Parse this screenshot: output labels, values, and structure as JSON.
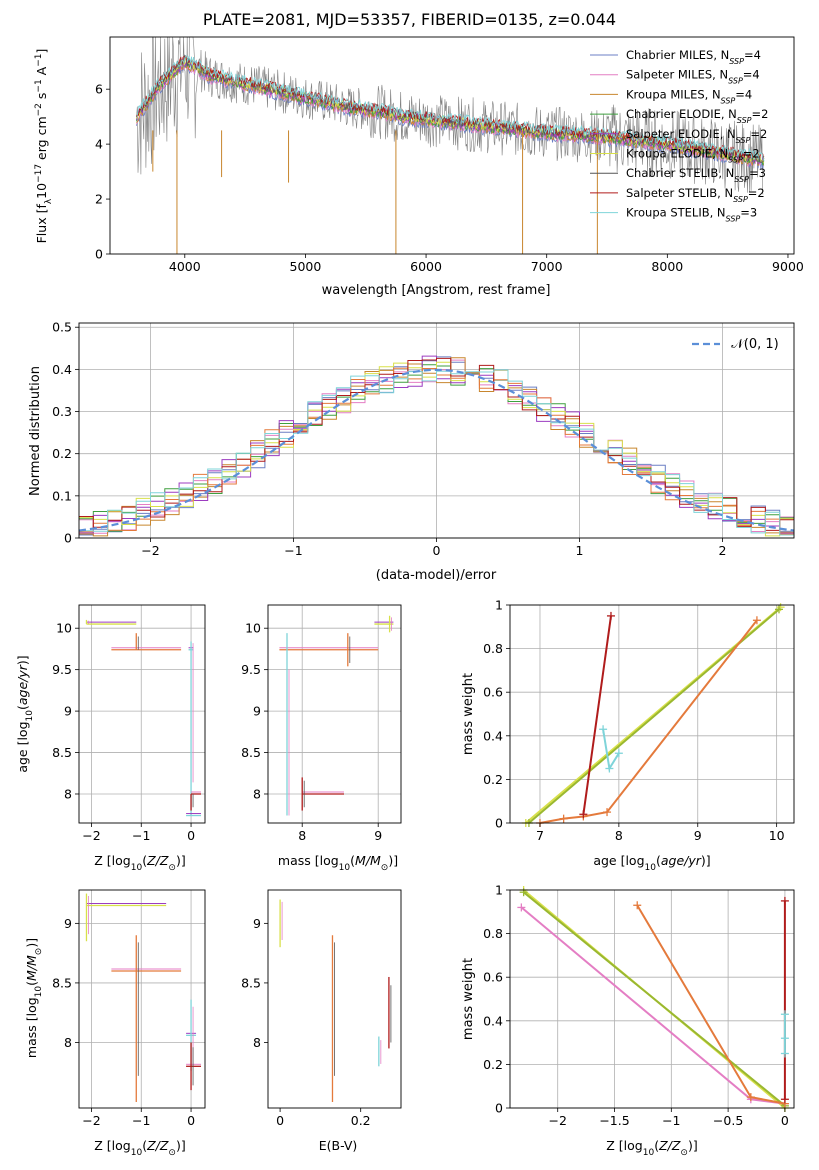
{
  "title": "PLATE=2081, MJD=53357, FIBERID=0135, z=0.044",
  "series_names": [
    "Chabrier MILES, N$_{SSP}$=4",
    "Salpeter MILES, N$_{SSP}$=4",
    "Kroupa MILES, N$_{SSP}$=4",
    "Chabrier ELODIE, N$_{SSP}$=2",
    "Salpeter ELODIE, N$_{SSP}$=2",
    "Kroupa ELODIE, N$_{SSP}$=2",
    "Chabrier STELIB, N$_{SSP}$=3",
    "Salpeter STELIB, N$_{SSP}$=2",
    "Kroupa STELIB, N$_{SSP}$=3"
  ],
  "legend_labels": [
    {
      "pre": "Chabrier MILES, N",
      "sub": "SSP",
      "post": "=4"
    },
    {
      "pre": "Salpeter MILES, N",
      "sub": "SSP",
      "post": "=4"
    },
    {
      "pre": "Kroupa MILES, N",
      "sub": "SSP",
      "post": "=4"
    },
    {
      "pre": "Chabrier ELODIE, N",
      "sub": "SSP",
      "post": "=2"
    },
    {
      "pre": "Salpeter ELODIE, N",
      "sub": "SSP",
      "post": "=2"
    },
    {
      "pre": "Kroupa ELODIE, N",
      "sub": "SSP",
      "post": "=2"
    },
    {
      "pre": "Chabrier STELIB, N",
      "sub": "SSP",
      "post": "=3"
    },
    {
      "pre": "Salpeter STELIB, N",
      "sub": "SSP",
      "post": "=2"
    },
    {
      "pre": "Kroupa STELIB, N",
      "sub": "SSP",
      "post": "=3"
    }
  ],
  "colors": [
    "#6b7fc4",
    "#e47ec4",
    "#c8862e",
    "#3f9f3f",
    "#9c3cc0",
    "#d8e04a",
    "#555555",
    "#b01c1c",
    "#7fd4d9"
  ],
  "extra_colors": {
    "data": "#808080",
    "orange": "#e47a3c",
    "dashed": "#5b8fd8",
    "grid": "#b0b0b0"
  },
  "chart_data": [
    {
      "type": "line",
      "title": "PLATE=2081, MJD=53357, FIBERID=0135, z=0.044",
      "xlabel": "wavelength [Angstrom, rest frame]",
      "ylabel": "Flux [f$_\\lambda$ 10$^{-17}$ erg cm$^{-2}$ s$^{-1}$ A$^{-1}$]",
      "xlim": [
        3380,
        9050
      ],
      "ylim": [
        0,
        7.9
      ],
      "xticks": [
        4000,
        5000,
        6000,
        7000,
        8000,
        9000
      ],
      "yticks": [
        0,
        2,
        4,
        6
      ],
      "grid": false,
      "legend": "upper-right",
      "x": [
        3600,
        3700,
        3800,
        3900,
        4000,
        4100,
        4200,
        4300,
        4400,
        4500,
        4600,
        4800,
        5000,
        5200,
        5400,
        5600,
        5800,
        6000,
        6200,
        6400,
        6600,
        6800,
        7000,
        7200,
        7400,
        7600,
        7800,
        8000,
        8200,
        8400,
        8600,
        8800
      ],
      "model_flux": [
        5.0,
        5.6,
        6.2,
        6.6,
        7.0,
        6.8,
        6.5,
        6.4,
        6.3,
        6.2,
        6.1,
        5.9,
        5.7,
        5.5,
        5.3,
        5.2,
        5.0,
        4.9,
        4.8,
        4.7,
        4.6,
        4.5,
        4.4,
        4.35,
        4.3,
        4.2,
        4.1,
        4.0,
        3.85,
        3.7,
        3.55,
        3.4
      ]
    },
    {
      "type": "line",
      "xlabel": "(data-model)/error",
      "ylabel": "Normed distribution",
      "xlim": [
        -2.5,
        2.5
      ],
      "ylim": [
        0,
        0.51
      ],
      "xticks": [
        -2,
        -1,
        0,
        1,
        2
      ],
      "yticks": [
        0.0,
        0.1,
        0.2,
        0.3,
        0.4,
        0.5
      ],
      "grid": true,
      "legend": "upper-right",
      "legend_label": "$\\mathcal{N}(0,1)$",
      "bin_width": 0.1
    },
    {
      "type": "scatter",
      "xlabel": "Z [log$_{10}$($Z/Z_\\odot$)]",
      "ylabel": "age  [log$_{10}$($age/yr$)]",
      "xlim": [
        -2.25,
        0.28
      ],
      "ylim": [
        7.65,
        10.28
      ],
      "xticks": [
        -2,
        -1,
        0
      ],
      "yticks": [
        8.0,
        8.5,
        9.0,
        9.5,
        10.0
      ],
      "grid": true,
      "points": [
        {
          "x": -2.1,
          "y": 10.05,
          "xerr": [
            0.0,
            1.0
          ],
          "yerr": [
            0.0,
            0.05
          ]
        },
        {
          "x": -1.1,
          "y": 9.74,
          "xerr": [
            0.5,
            0.9
          ],
          "yerr": [
            0.0,
            0.2
          ]
        },
        {
          "x": 0.0,
          "y": 9.74,
          "xerr": [
            0.05,
            0.05
          ],
          "yerr": [
            2.0,
            0.1
          ]
        },
        {
          "x": 0.0,
          "y": 8.0,
          "xerr": [
            0.0,
            0.2
          ],
          "yerr": [
            0.2,
            0.0
          ]
        },
        {
          "x": 0.0,
          "y": 7.74,
          "xerr": [
            0.1,
            0.2
          ],
          "yerr": [
            0.0,
            0.0
          ]
        }
      ]
    },
    {
      "type": "scatter",
      "xlabel": "mass [log$_{10}$($M/M_\\odot$)]",
      "ylabel": "",
      "xlim": [
        7.55,
        9.3
      ],
      "ylim": [
        7.65,
        10.28
      ],
      "xticks": [
        8,
        9
      ],
      "yticks": [
        8.0,
        8.5,
        9.0,
        9.5,
        10.0
      ],
      "grid": true,
      "points": [
        {
          "x": 9.15,
          "y": 10.05,
          "xerr": [
            0.2,
            0.05
          ],
          "yerr": [
            0.1,
            0.1
          ]
        },
        {
          "x": 8.6,
          "y": 9.74,
          "xerr": [
            0.9,
            0.4
          ],
          "yerr": [
            0.2,
            0.2
          ]
        },
        {
          "x": 7.8,
          "y": 7.74,
          "xerr": [
            0.0,
            0.0
          ],
          "yerr": [
            0.0,
            2.2
          ]
        },
        {
          "x": 8.0,
          "y": 8.0,
          "xerr": [
            0.0,
            0.55
          ],
          "yerr": [
            0.2,
            0.2
          ]
        }
      ]
    },
    {
      "type": "line",
      "xlabel": "age  [log$_{10}$($age/yr$)]",
      "ylabel": "mass weight",
      "xlim": [
        6.62,
        10.22
      ],
      "ylim": [
        0,
        1.0
      ],
      "xticks": [
        7,
        8,
        9,
        10
      ],
      "yticks": [
        0.0,
        0.2,
        0.4,
        0.6,
        0.8,
        1.0
      ],
      "grid": true,
      "series": [
        {
          "name": "Kroupa ELODIE",
          "x": [
            6.82,
            10.05
          ],
          "y": [
            0.0,
            0.99
          ]
        },
        {
          "name": "Chabrier ELODIE",
          "x": [
            6.86,
            10.03
          ],
          "y": [
            0.0,
            0.98
          ]
        },
        {
          "name": "MILES",
          "x": [
            7.0,
            7.3,
            7.55,
            7.85,
            9.75
          ],
          "y": [
            0.0,
            0.02,
            0.03,
            0.05,
            0.93
          ]
        },
        {
          "name": "Salpeter STELIB",
          "x": [
            7.55,
            7.9
          ],
          "y": [
            0.04,
            0.95
          ]
        },
        {
          "name": "Kroupa STELIB",
          "x": [
            7.8,
            7.88,
            8.0
          ],
          "y": [
            0.43,
            0.25,
            0.32
          ]
        }
      ]
    },
    {
      "type": "scatter",
      "xlabel": "Z [log$_{10}$($Z/Z_\\odot$)]",
      "ylabel": "mass [log$_{10}$($M/M_\\odot$)]",
      "xlim": [
        -2.25,
        0.28
      ],
      "ylim": [
        7.45,
        9.28
      ],
      "xticks": [
        -2,
        -1,
        0
      ],
      "yticks": [
        8.0,
        8.5,
        9.0
      ],
      "grid": true,
      "points": [
        {
          "x": -2.1,
          "y": 9.15,
          "xerr": [
            0.0,
            1.6
          ],
          "yerr": [
            0.3,
            0.1
          ]
        },
        {
          "x": -1.1,
          "y": 8.6,
          "xerr": [
            0.5,
            0.9
          ],
          "yerr": [
            1.1,
            0.3
          ]
        },
        {
          "x": 0.0,
          "y": 8.06,
          "xerr": [
            0.1,
            0.1
          ],
          "yerr": [
            0.3,
            0.3
          ]
        },
        {
          "x": 0.0,
          "y": 7.8,
          "xerr": [
            0.1,
            0.2
          ],
          "yerr": [
            0.2,
            0.2
          ]
        }
      ]
    },
    {
      "type": "scatter",
      "xlabel": "E(B-V)",
      "ylabel": "",
      "xlim": [
        -0.03,
        0.3
      ],
      "ylim": [
        7.45,
        9.28
      ],
      "xticks": [
        0.0,
        0.2
      ],
      "yticks": [
        8.0,
        8.5,
        9.0
      ],
      "grid": false,
      "points": [
        {
          "x": 0.0,
          "y": 9.1,
          "ebv_err": [
            0.3,
            0.1
          ]
        },
        {
          "x": 0.13,
          "y": 8.6,
          "ebv_err": [
            1.1,
            0.3
          ]
        },
        {
          "x": 0.245,
          "y": 7.9,
          "ebv_err": [
            0.1,
            0.15
          ]
        },
        {
          "x": 0.27,
          "y": 8.2,
          "ebv_err": [
            0.25,
            0.35
          ]
        }
      ]
    },
    {
      "type": "line",
      "xlabel": "Z [log$_{10}$($Z/Z_\\odot$)]",
      "ylabel": "mass weight",
      "xlim": [
        -2.42,
        0.08
      ],
      "ylim": [
        0,
        1.0
      ],
      "xticks": [
        -2.0,
        -1.5,
        -1.0,
        -0.5,
        0.0
      ],
      "yticks": [
        0.0,
        0.2,
        0.4,
        0.6,
        0.8,
        1.0
      ],
      "grid": true,
      "series": [
        {
          "name": "Kroupa ELODIE",
          "x": [
            -2.3,
            0.0
          ],
          "y": [
            1.0,
            0.0
          ]
        },
        {
          "name": "Chabrier ELODIE",
          "x": [
            -2.3,
            0.0
          ],
          "y": [
            0.99,
            0.01
          ]
        },
        {
          "name": "Salpeter MILES",
          "x": [
            -2.32,
            -0.3,
            0.0
          ],
          "y": [
            0.92,
            0.04,
            0.02
          ]
        },
        {
          "name": "Kroupa MILES",
          "x": [
            -1.3,
            -0.3,
            0.0
          ],
          "y": [
            0.93,
            0.05,
            0.02
          ]
        },
        {
          "name": "Salpeter STELIB",
          "x": [
            0.0,
            0.0
          ],
          "y": [
            0.95,
            0.04
          ]
        },
        {
          "name": "Kroupa STELIB",
          "x": [
            0.0,
            0.0,
            0.0
          ],
          "y": [
            0.43,
            0.32,
            0.25
          ]
        }
      ]
    }
  ]
}
